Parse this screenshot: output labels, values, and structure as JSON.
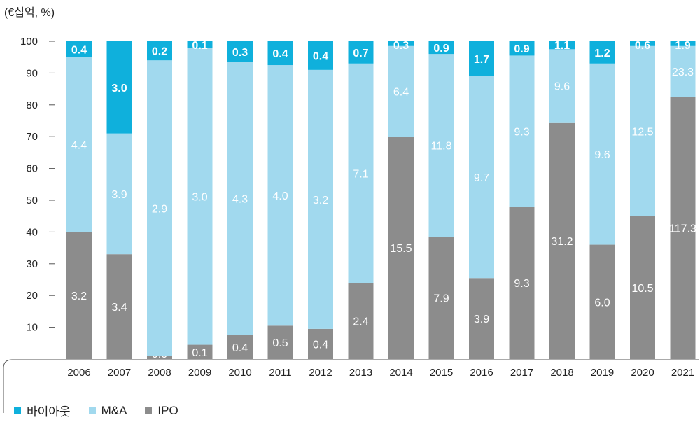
{
  "chart_data": {
    "type": "bar",
    "stacked": true,
    "unit_label": "(€십억, %)",
    "categories": [
      "2006",
      "2007",
      "2008",
      "2009",
      "2010",
      "2011",
      "2012",
      "2013",
      "2014",
      "2015",
      "2016",
      "2017",
      "2018",
      "2019",
      "2020",
      "2021"
    ],
    "ylim": [
      0,
      100
    ],
    "yticks": [
      10,
      20,
      30,
      40,
      50,
      60,
      70,
      80,
      90,
      100
    ],
    "series": [
      {
        "name": "IPO",
        "color": "#8c8c8c",
        "percent": [
          40,
          33,
          1,
          4.5,
          7.5,
          10.5,
          9.5,
          24,
          70,
          38.5,
          25.5,
          48,
          74.5,
          36,
          45,
          82.5
        ],
        "labels": [
          "3.2",
          "3.4",
          "0.0",
          "0.1",
          "0.4",
          "0.5",
          "0.4",
          "2.4",
          "15.5",
          "7.9",
          "3.9",
          "9.3",
          "31.2",
          "6.0",
          "10.5",
          "117.3"
        ]
      },
      {
        "name": "M&A",
        "color": "#a1d9ee",
        "percent": [
          55,
          38,
          93,
          93.5,
          86,
          82,
          81.5,
          69,
          28.5,
          57.5,
          63.5,
          47.5,
          23,
          57,
          53.5,
          16
        ],
        "labels": [
          "4.4",
          "3.9",
          "2.9",
          "3.0",
          "4.3",
          "4.0",
          "3.2",
          "7.1",
          "6.4",
          "11.8",
          "9.7",
          "9.3",
          "9.6",
          "9.6",
          "12.5",
          "23.3"
        ]
      },
      {
        "name": "바이아웃",
        "color": "#0fb0dc",
        "percent": [
          5,
          29,
          6,
          2,
          6.5,
          7.5,
          9,
          7,
          1.5,
          4,
          11,
          4.5,
          2.5,
          7,
          1.5,
          1.5
        ],
        "labels": [
          "0.4",
          "3.0",
          "0.2",
          "0.1",
          "0.3",
          "0.4",
          "0.4",
          "0.7",
          "0.3",
          "0.9",
          "1.7",
          "0.9",
          "1.1",
          "1.2",
          "0.6",
          "1.9"
        ]
      }
    ],
    "legend": [
      "바이아웃",
      "M&A",
      "IPO"
    ],
    "legend_position": "bottom-left",
    "grid": false
  }
}
